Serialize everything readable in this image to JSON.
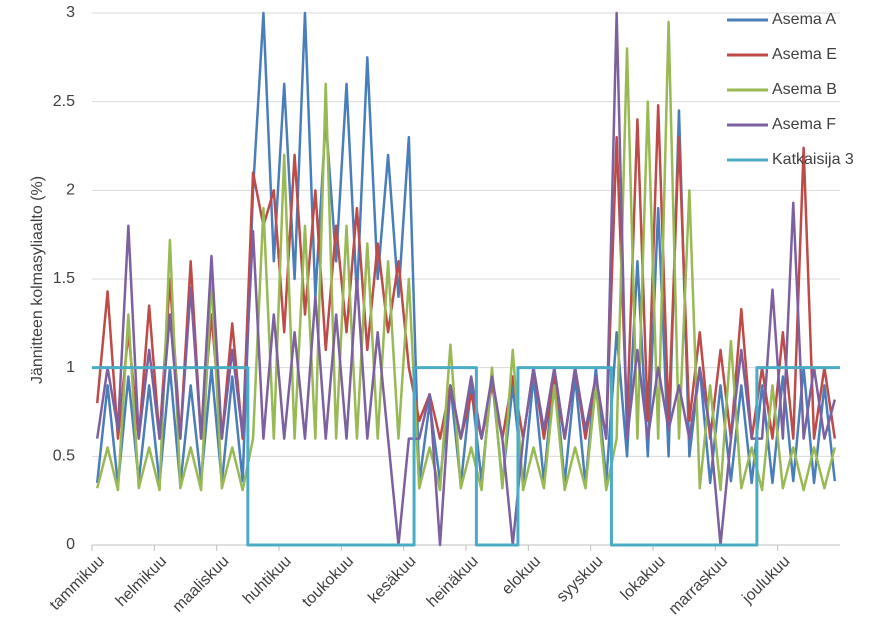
{
  "chart_data": {
    "type": "line",
    "y_label": "Jännitteen kolmasyliaalto (%)",
    "categories": [
      "tammikuu",
      null,
      null,
      null,
      null,
      null,
      "helmikuu",
      null,
      null,
      null,
      null,
      null,
      "maaliskuu",
      null,
      null,
      null,
      null,
      null,
      "huhtikuu",
      null,
      null,
      null,
      null,
      null,
      "toukokuu",
      null,
      null,
      null,
      null,
      null,
      "kesäkuu",
      null,
      null,
      null,
      null,
      null,
      "heinäkuu",
      null,
      null,
      null,
      null,
      null,
      "elokuu",
      null,
      null,
      null,
      null,
      null,
      "syyskuu",
      null,
      null,
      null,
      null,
      null,
      "lokakuu",
      null,
      null,
      null,
      null,
      null,
      "marraskuu",
      null,
      null,
      null,
      null,
      null,
      "joulukuu",
      null,
      null,
      null,
      null,
      null
    ],
    "ylim": [
      0,
      3
    ],
    "yticks": [
      0,
      0.5,
      1,
      1.5,
      2,
      2.5,
      3
    ],
    "grid": true,
    "legend": "top-right",
    "series": [
      {
        "name": "Asema A",
        "color": "#4a7ebb",
        "values": [
          0.35,
          0.9,
          0.34,
          0.95,
          0.36,
          0.9,
          0.35,
          1.0,
          0.34,
          0.9,
          0.36,
          1.0,
          0.35,
          0.95,
          0.36,
          2.0,
          3.0,
          1.6,
          2.6,
          1.5,
          3.0,
          1.4,
          2.4,
          1.6,
          2.6,
          1.4,
          2.75,
          1.5,
          2.2,
          1.4,
          2.3,
          0.35,
          0.8,
          0.36,
          0.9,
          0.34,
          0.9,
          0.36,
          0.95,
          0.35,
          0.9,
          0.34,
          0.95,
          0.36,
          1.0,
          0.35,
          0.95,
          0.34,
          1.0,
          0.36,
          1.2,
          0.5,
          1.6,
          0.5,
          1.9,
          0.5,
          2.45,
          0.5,
          1.0,
          0.35,
          0.9,
          0.36,
          0.9,
          0.35,
          0.9,
          0.35,
          0.95,
          0.36,
          1.0,
          0.35,
          0.9,
          0.36
        ]
      },
      {
        "name": "Asema E",
        "color": "#be4b48",
        "values": [
          0.8,
          1.43,
          0.6,
          1.2,
          0.6,
          1.35,
          0.6,
          1.5,
          0.6,
          1.6,
          0.6,
          1.3,
          0.6,
          1.25,
          0.6,
          2.1,
          1.8,
          2.0,
          1.2,
          2.2,
          1.3,
          2.0,
          1.1,
          1.8,
          1.2,
          1.9,
          1.1,
          1.7,
          1.2,
          1.6,
          1.0,
          0.7,
          0.85,
          0.6,
          0.9,
          0.6,
          0.85,
          0.6,
          0.9,
          0.6,
          0.95,
          0.6,
          1.0,
          0.6,
          0.95,
          0.6,
          1.0,
          0.6,
          0.95,
          0.6,
          2.3,
          0.7,
          2.4,
          0.7,
          2.48,
          0.7,
          2.3,
          0.7,
          1.2,
          0.6,
          1.1,
          0.6,
          1.33,
          0.6,
          1.0,
          0.6,
          1.2,
          0.6,
          2.24,
          0.6,
          1.0,
          0.6
        ]
      },
      {
        "name": "Asema B",
        "color": "#98b954",
        "values": [
          0.32,
          0.55,
          0.31,
          1.3,
          0.32,
          0.55,
          0.31,
          1.72,
          0.32,
          0.55,
          0.31,
          1.5,
          0.32,
          0.55,
          0.31,
          0.6,
          1.9,
          0.6,
          2.2,
          0.6,
          1.8,
          0.6,
          2.6,
          0.6,
          1.8,
          0.6,
          1.7,
          0.6,
          1.6,
          0.6,
          1.5,
          0.32,
          0.55,
          0.31,
          1.13,
          0.32,
          0.55,
          0.31,
          1.0,
          0.32,
          1.1,
          0.31,
          0.55,
          0.32,
          0.9,
          0.31,
          0.55,
          0.32,
          0.9,
          0.31,
          0.6,
          2.8,
          0.6,
          2.5,
          0.6,
          2.95,
          0.6,
          2.0,
          0.32,
          0.9,
          0.31,
          1.15,
          0.32,
          0.55,
          0.31,
          0.9,
          0.32,
          0.55,
          0.31,
          0.55,
          0.32,
          0.55
        ]
      },
      {
        "name": "Asema F",
        "color": "#7d60a0",
        "values": [
          0.6,
          1.0,
          0.65,
          1.8,
          0.6,
          1.1,
          0.6,
          1.3,
          0.6,
          1.45,
          0.6,
          1.63,
          0.6,
          1.1,
          0.62,
          1.77,
          0.6,
          1.3,
          0.6,
          1.2,
          0.6,
          1.4,
          0.6,
          1.3,
          0.6,
          1.5,
          0.6,
          1.2,
          0.6,
          0,
          0.6,
          0.6,
          0.85,
          0,
          0.9,
          0.6,
          0.95,
          0.6,
          0.95,
          0.6,
          0,
          0.6,
          1.0,
          0.65,
          1.0,
          0.6,
          1.0,
          0.65,
          0.95,
          0.6,
          3.0,
          0.6,
          1.1,
          0.6,
          1.0,
          0.65,
          0.9,
          0.6,
          1.0,
          0.65,
          0,
          0.6,
          1.1,
          0.6,
          0.6,
          1.44,
          0.6,
          1.93,
          0.6,
          1.0,
          0.6,
          0.82
        ]
      },
      {
        "name": "Katkaisija 3",
        "color": "#4bacc6",
        "step": true,
        "values": [
          1,
          1,
          1,
          1,
          1,
          1,
          1,
          1,
          1,
          1,
          1,
          1,
          1,
          1,
          1,
          0,
          0,
          0,
          0,
          0,
          0,
          0,
          0,
          0,
          0,
          0,
          0,
          0,
          0,
          0,
          0,
          1,
          1,
          1,
          1,
          1,
          1,
          0,
          0,
          0,
          0,
          1,
          1,
          1,
          1,
          1,
          1,
          1,
          1,
          1,
          0,
          0,
          0,
          0,
          0,
          0,
          0,
          0,
          0,
          0,
          0,
          0,
          0,
          0,
          1,
          1,
          1,
          1,
          1,
          1,
          1,
          1
        ]
      }
    ]
  }
}
